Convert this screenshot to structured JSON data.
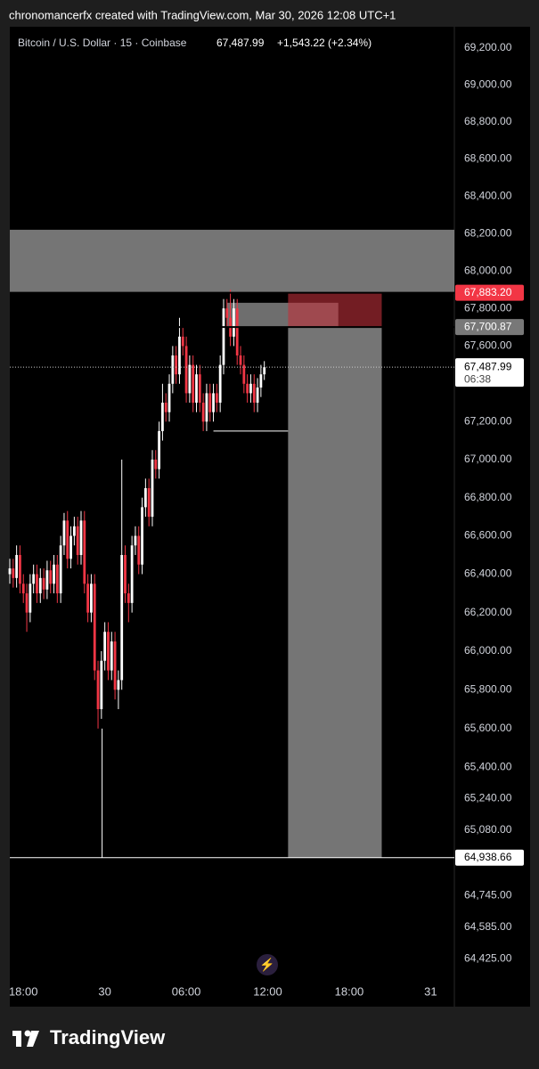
{
  "header": {
    "credit": "chronomancerfx created with TradingView.com, Mar 30, 2026 12:08 UTC+1",
    "logo": "TradingView"
  },
  "chart_data": {
    "type": "candlestick",
    "symbol": "Bitcoin / U.S. Dollar · 15 · Coinbase",
    "last": "67,487.99",
    "change": "+1,543.22 (+2.34%)",
    "log_scale": true,
    "grid": false,
    "up_color": "#ffffff",
    "down_color": "#f23645",
    "x": [
      17,
      17.25,
      17.5,
      17.75,
      18,
      18.25,
      18.5,
      18.75,
      19,
      19.25,
      19.5,
      19.75,
      20,
      20.25,
      20.5,
      20.75,
      21,
      21.25,
      21.5,
      21.75,
      22,
      22.25,
      22.5,
      22.75,
      23,
      23.25,
      23.5,
      23.75,
      24,
      24.25,
      24.5,
      24.75,
      25,
      25.25,
      25.5,
      25.75,
      26,
      26.25,
      26.5,
      26.75,
      27,
      27.25,
      27.5,
      27.75,
      28,
      28.25,
      28.5,
      28.75,
      29,
      29.25,
      29.5,
      29.75,
      30,
      30.25,
      30.5,
      30.75,
      31,
      31.25,
      31.5,
      31.75,
      32,
      32.25,
      32.5,
      32.75,
      33,
      33.25,
      33.5,
      33.75,
      34,
      34.25,
      34.5,
      34.75,
      35,
      35.25,
      35.5,
      35.75
    ],
    "open": [
      66400,
      66430,
      66380,
      66500,
      66350,
      66300,
      66200,
      66350,
      66400,
      66300,
      66380,
      66320,
      66420,
      66350,
      66450,
      66300,
      66550,
      66680,
      66480,
      66600,
      66650,
      66500,
      66680,
      66350,
      66200,
      66350,
      65900,
      65700,
      65950,
      66100,
      65900,
      66050,
      65800,
      65850,
      66500,
      66300,
      66250,
      66550,
      66600,
      66450,
      66750,
      66850,
      66700,
      67000,
      66950,
      67150,
      67300,
      67250,
      67400,
      67550,
      67450,
      67650,
      67600,
      67350,
      67500,
      67300,
      67450,
      67300,
      67200,
      67350,
      67250,
      67350,
      67300,
      67500,
      67800,
      67750,
      67650,
      67800,
      67550,
      67500,
      67400,
      67350,
      67400,
      67300,
      67380,
      67450
    ],
    "high": [
      66480,
      66480,
      66550,
      66550,
      66400,
      66350,
      66400,
      66450,
      66450,
      66430,
      66430,
      66470,
      66470,
      66500,
      66500,
      66600,
      66720,
      66730,
      66650,
      66700,
      66700,
      66730,
      66730,
      66400,
      66400,
      66400,
      65950,
      66000,
      66150,
      66150,
      66100,
      66100,
      65900,
      67000,
      66550,
      66350,
      66600,
      66650,
      66650,
      66800,
      66900,
      66900,
      67050,
      67050,
      67200,
      67400,
      67350,
      67450,
      67600,
      67600,
      67750,
      67700,
      67650,
      67550,
      67550,
      67500,
      67500,
      67350,
      67400,
      67400,
      67400,
      67400,
      67550,
      67850,
      67850,
      67900,
      67850,
      67850,
      67600,
      67550,
      67450,
      67450,
      67450,
      67430,
      67500,
      67520
    ],
    "low": [
      66350,
      66330,
      66330,
      66300,
      66250,
      66100,
      66150,
      66300,
      66250,
      66250,
      66270,
      66270,
      66300,
      66300,
      66250,
      66250,
      66500,
      66430,
      66430,
      66550,
      66450,
      66450,
      66300,
      66150,
      66150,
      65850,
      65600,
      65650,
      65900,
      65850,
      65850,
      65750,
      65700,
      65800,
      66250,
      66150,
      66200,
      66500,
      66400,
      66400,
      66700,
      66650,
      66650,
      66900,
      66900,
      67100,
      67200,
      67200,
      67350,
      67400,
      67400,
      67550,
      67300,
      67300,
      67250,
      67250,
      67250,
      67150,
      67150,
      67200,
      67200,
      67250,
      67250,
      67450,
      67700,
      67600,
      67600,
      67500,
      67450,
      67350,
      67300,
      67300,
      67250,
      67250,
      67330,
      67420
    ],
    "close": [
      66430,
      66380,
      66500,
      66350,
      66300,
      66200,
      66350,
      66400,
      66300,
      66380,
      66320,
      66420,
      66350,
      66450,
      66300,
      66550,
      66680,
      66480,
      66600,
      66650,
      66500,
      66680,
      66350,
      66200,
      66350,
      65900,
      65700,
      65950,
      66100,
      65900,
      66050,
      65800,
      65850,
      66500,
      66300,
      66250,
      66550,
      66600,
      66450,
      66750,
      66850,
      66700,
      67000,
      66950,
      67150,
      67300,
      67250,
      67400,
      67550,
      67450,
      67650,
      67600,
      67350,
      67500,
      67300,
      67450,
      67300,
      67200,
      67350,
      67250,
      67350,
      67300,
      67500,
      67800,
      67750,
      67650,
      67800,
      67550,
      67500,
      67400,
      67350,
      67400,
      67300,
      67380,
      67450,
      67487.99
    ],
    "xlim": [
      17,
      49.75
    ],
    "ylim": [
      64318,
      69355
    ],
    "xticks": [
      {
        "value": 18,
        "label": "18:00"
      },
      {
        "value": 24,
        "label": "30"
      },
      {
        "value": 30,
        "label": "06:00"
      },
      {
        "value": 36,
        "label": "12:00"
      },
      {
        "value": 42,
        "label": "18:00"
      },
      {
        "value": 48,
        "label": "31"
      }
    ],
    "yticks": [
      {
        "value": 69200,
        "label": "69,200.00"
      },
      {
        "value": 69000,
        "label": "69,000.00"
      },
      {
        "value": 68800,
        "label": "68,800.00"
      },
      {
        "value": 68600,
        "label": "68,600.00"
      },
      {
        "value": 68400,
        "label": "68,400.00"
      },
      {
        "value": 68200,
        "label": "68,200.00"
      },
      {
        "value": 68000,
        "label": "68,000.00"
      },
      {
        "value": 67800,
        "label": "67,800.00"
      },
      {
        "value": 67600,
        "label": "67,600.00"
      },
      {
        "value": 67200,
        "label": "67,200.00"
      },
      {
        "value": 67000,
        "label": "67,000.00"
      },
      {
        "value": 66800,
        "label": "66,800.00"
      },
      {
        "value": 66600,
        "label": "66,600.00"
      },
      {
        "value": 66400,
        "label": "66,400.00"
      },
      {
        "value": 66200,
        "label": "66,200.00"
      },
      {
        "value": 66000,
        "label": "66,000.00"
      },
      {
        "value": 65800,
        "label": "65,800.00"
      },
      {
        "value": 65600,
        "label": "65,600.00"
      },
      {
        "value": 65400,
        "label": "65,400.00"
      },
      {
        "value": 65240,
        "label": "65,240.00"
      },
      {
        "value": 65080,
        "label": "65,080.00"
      },
      {
        "value": 64745,
        "label": "64,745.00"
      },
      {
        "value": 64585,
        "label": "64,585.00"
      },
      {
        "value": 64425,
        "label": "64,425.00"
      }
    ],
    "price_labels": [
      {
        "value": 67883.2,
        "label": "67,883.20",
        "color": "#f23645"
      },
      {
        "value": 67700.87,
        "label": "67,700.87",
        "color": "#787878"
      },
      {
        "value": 64938.66,
        "label": "64,938.66",
        "color": "#ffffff"
      }
    ],
    "current": {
      "value": 67487.99,
      "label": "67,487.99",
      "countdown": "06:38"
    },
    "drawings": {
      "zone": [
        67883.2,
        68220
      ],
      "stop_box": {
        "x": [
          37.5,
          44.4
        ],
        "y": [
          67700.87,
          67883.2
        ]
      },
      "target_box": {
        "x": [
          37.5,
          44.4
        ],
        "y": [
          64938.66,
          67700.87
        ]
      },
      "small_box": {
        "x": [
          33,
          41.2
        ],
        "y": [
          67700.87,
          67830
        ]
      },
      "level_low": {
        "x": [
          32,
          37.5
        ],
        "y": 67150
      },
      "vline": {
        "x": 23.8,
        "y": [
          64938.66,
          65600
        ]
      }
    }
  }
}
